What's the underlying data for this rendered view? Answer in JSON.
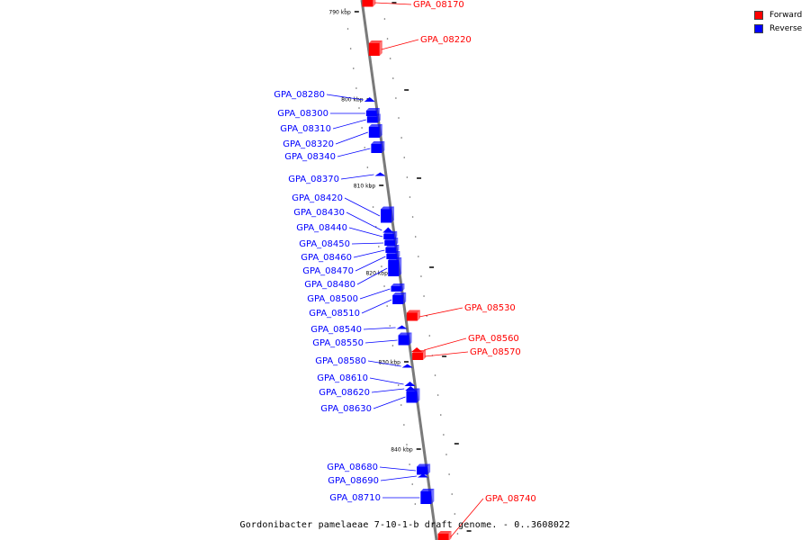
{
  "colors": {
    "forward": "#ff0000",
    "reverse": "#0000ff",
    "axis": "#888888"
  },
  "legend": {
    "forward": "Forward",
    "reverse": "Reverse"
  },
  "caption": "Gordonibacter pamelaeae 7-10-1-b draft genome. - 0..3608022",
  "scale_labels": [
    "790 kbp",
    "800 kbp",
    "810 kbp",
    "820 kbp",
    "830 kbp",
    "840 kbp"
  ],
  "genes": [
    {
      "name": "GPA_08170",
      "strand": "forward"
    },
    {
      "name": "GPA_08220",
      "strand": "forward"
    },
    {
      "name": "GPA_08280",
      "strand": "reverse"
    },
    {
      "name": "GPA_08300",
      "strand": "reverse"
    },
    {
      "name": "GPA_08310",
      "strand": "reverse"
    },
    {
      "name": "GPA_08320",
      "strand": "reverse"
    },
    {
      "name": "GPA_08340",
      "strand": "reverse"
    },
    {
      "name": "GPA_08370",
      "strand": "reverse"
    },
    {
      "name": "GPA_08420",
      "strand": "reverse"
    },
    {
      "name": "GPA_08430",
      "strand": "reverse"
    },
    {
      "name": "GPA_08440",
      "strand": "reverse"
    },
    {
      "name": "GPA_08450",
      "strand": "reverse"
    },
    {
      "name": "GPA_08460",
      "strand": "reverse"
    },
    {
      "name": "GPA_08470",
      "strand": "reverse"
    },
    {
      "name": "GPA_08480",
      "strand": "reverse"
    },
    {
      "name": "GPA_08500",
      "strand": "reverse"
    },
    {
      "name": "GPA_08510",
      "strand": "reverse"
    },
    {
      "name": "GPA_08530",
      "strand": "forward"
    },
    {
      "name": "GPA_08540",
      "strand": "reverse"
    },
    {
      "name": "GPA_08550",
      "strand": "reverse"
    },
    {
      "name": "GPA_08560",
      "strand": "forward"
    },
    {
      "name": "GPA_08570",
      "strand": "forward"
    },
    {
      "name": "GPA_08580",
      "strand": "reverse"
    },
    {
      "name": "GPA_08610",
      "strand": "reverse"
    },
    {
      "name": "GPA_08620",
      "strand": "reverse"
    },
    {
      "name": "GPA_08630",
      "strand": "reverse"
    },
    {
      "name": "GPA_08680",
      "strand": "reverse"
    },
    {
      "name": "GPA_08690",
      "strand": "reverse"
    },
    {
      "name": "GPA_08710",
      "strand": "reverse"
    },
    {
      "name": "GPA_08740",
      "strand": "forward"
    }
  ]
}
